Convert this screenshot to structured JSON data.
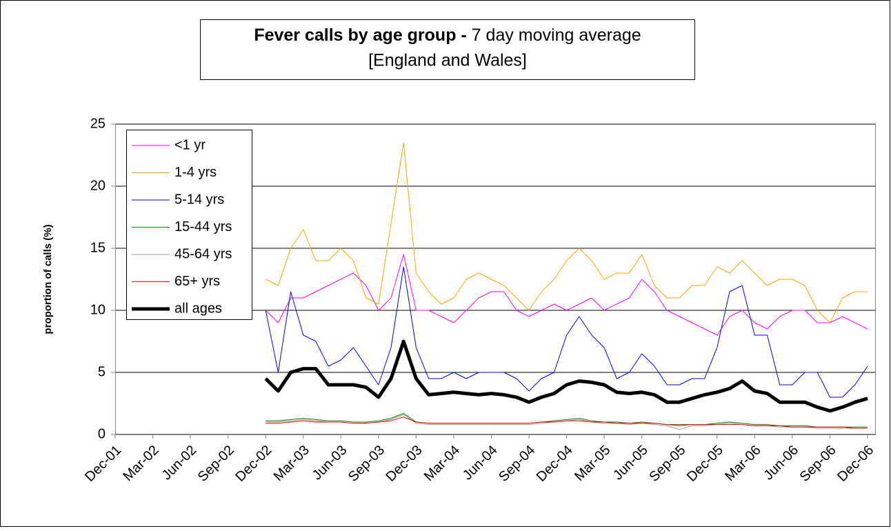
{
  "chart_data": {
    "type": "line",
    "title": "Fever calls by age group -",
    "title_detail": "7 day moving average",
    "subtitle": "[England and Wales]",
    "ylabel": "proportion of calls (%)",
    "categories": [
      "Dec-01",
      null,
      null,
      "Mar-02",
      null,
      null,
      "Jun-02",
      null,
      null,
      "Sep-02",
      null,
      null,
      "Dec-02",
      null,
      null,
      "Mar-03",
      null,
      null,
      "Jun-03",
      null,
      null,
      "Sep-03",
      null,
      null,
      "Dec-03",
      null,
      null,
      "Mar-04",
      null,
      null,
      "Jun-04",
      null,
      null,
      "Sep-04",
      null,
      null,
      "Dec-04",
      null,
      null,
      "Mar-05",
      null,
      null,
      "Jun-05",
      null,
      null,
      "Sep-05",
      null,
      null,
      "Dec-05",
      null,
      null,
      "Mar-06",
      null,
      null,
      "Jun-06",
      null,
      null,
      "Sep-06",
      null,
      null,
      "Dec-06"
    ],
    "ylim": [
      0,
      25
    ],
    "yticks": [
      0,
      5,
      10,
      15,
      20,
      25
    ],
    "grid": true,
    "legend": "upper left",
    "series": [
      {
        "name": "<1 yr",
        "color": "#ff00ff",
        "width": 1,
        "values": [
          null,
          null,
          null,
          null,
          null,
          null,
          null,
          null,
          null,
          null,
          null,
          null,
          10,
          9,
          11,
          11,
          11.5,
          12,
          12.5,
          13,
          12,
          10,
          11,
          14.5,
          10,
          10,
          9.5,
          9,
          10,
          11,
          11.5,
          11.5,
          10,
          9.5,
          10,
          10.5,
          10,
          10.5,
          11,
          10,
          10.5,
          11,
          12.5,
          11.5,
          10,
          9.5,
          9,
          8.5,
          8,
          9.5,
          10,
          9,
          8.5,
          9.5,
          10,
          10,
          9,
          9,
          9.5,
          9,
          8.5
        ]
      },
      {
        "name": "1-4 yrs",
        "color": "#ffa500",
        "width": 1,
        "values": [
          null,
          null,
          null,
          null,
          null,
          null,
          null,
          null,
          null,
          null,
          null,
          null,
          12.5,
          12,
          15,
          16.5,
          14,
          14,
          15,
          14,
          11,
          10.5,
          17,
          23.5,
          13,
          11.5,
          10.5,
          11,
          12.5,
          13,
          12.5,
          12,
          11,
          10,
          11.5,
          12.5,
          14,
          15,
          14,
          12.5,
          13,
          13,
          14.5,
          12,
          11,
          11,
          12,
          12,
          13.5,
          13,
          14,
          13,
          12,
          12.5,
          12.5,
          12,
          10,
          9,
          11,
          11.5,
          11.5
        ]
      },
      {
        "name": "5-14 yrs",
        "color": "#0000ff",
        "width": 1,
        "values": [
          null,
          null,
          null,
          null,
          null,
          null,
          null,
          null,
          null,
          null,
          null,
          null,
          10,
          5,
          11.5,
          8,
          7.5,
          5.5,
          6,
          7,
          5.5,
          4,
          7,
          13.5,
          7,
          4.5,
          4.5,
          5,
          4.5,
          5,
          5,
          5,
          4.5,
          3.5,
          4.5,
          5,
          8,
          9.5,
          8,
          7,
          4.5,
          5,
          6.5,
          5.5,
          4,
          4,
          4.5,
          4.5,
          7,
          11.5,
          12,
          8,
          8,
          4,
          4,
          5,
          5,
          3,
          3,
          4,
          5.5
        ]
      },
      {
        "name": "15-44 yrs",
        "color": "#008000",
        "width": 1,
        "values": [
          null,
          null,
          null,
          null,
          null,
          null,
          null,
          null,
          null,
          null,
          null,
          null,
          1.1,
          1.1,
          1.2,
          1.3,
          1.2,
          1.1,
          1.1,
          1,
          1,
          1.1,
          1.3,
          1.7,
          1,
          0.9,
          0.9,
          0.9,
          0.9,
          0.9,
          0.9,
          0.9,
          0.9,
          0.9,
          1,
          1.1,
          1.2,
          1.3,
          1.1,
          1,
          1,
          0.9,
          1,
          0.9,
          0.8,
          0.7,
          0.8,
          0.8,
          0.9,
          1,
          0.9,
          0.8,
          0.8,
          0.7,
          0.7,
          0.7,
          0.6,
          0.6,
          0.6,
          0.6,
          0.6
        ]
      },
      {
        "name": "45-64 yrs",
        "color": "#999999",
        "width": 1,
        "values": [
          null,
          null,
          null,
          null,
          null,
          null,
          null,
          null,
          null,
          null,
          null,
          null,
          1,
          1,
          1.1,
          1.2,
          1.1,
          1,
          1,
          0.9,
          0.9,
          1,
          1.2,
          1.6,
          0.9,
          0.8,
          0.8,
          0.8,
          0.8,
          0.8,
          0.8,
          0.8,
          0.8,
          0.8,
          0.9,
          1,
          1.1,
          1.2,
          1,
          0.9,
          0.9,
          0.8,
          0.9,
          0.8,
          0.7,
          0.4,
          0.7,
          0.7,
          0.8,
          0.9,
          0.8,
          0.7,
          0.7,
          0.6,
          0.6,
          0.6,
          0.5,
          0.5,
          0.5,
          0.5,
          0.5
        ]
      },
      {
        "name": "65+ yrs",
        "color": "#ff0000",
        "width": 1,
        "values": [
          null,
          null,
          null,
          null,
          null,
          null,
          null,
          null,
          null,
          null,
          null,
          null,
          0.9,
          0.9,
          1,
          1.1,
          1,
          1,
          1,
          0.9,
          0.9,
          1,
          1.1,
          1.4,
          1,
          0.9,
          0.9,
          0.9,
          0.9,
          0.9,
          0.9,
          0.9,
          0.9,
          0.9,
          1,
          1,
          1.1,
          1.1,
          1,
          1,
          0.9,
          0.9,
          0.9,
          0.9,
          0.8,
          0.8,
          0.8,
          0.8,
          0.8,
          0.8,
          0.8,
          0.7,
          0.7,
          0.7,
          0.6,
          0.6,
          0.6,
          0.6,
          0.6,
          0.5,
          0.5
        ]
      },
      {
        "name": "all ages",
        "color": "#000000",
        "width": 5,
        "values": [
          null,
          null,
          null,
          null,
          null,
          null,
          null,
          null,
          null,
          null,
          null,
          null,
          4.5,
          3.5,
          5,
          5.3,
          5.3,
          4,
          4,
          4,
          3.8,
          3,
          4.5,
          7.5,
          4.5,
          3.2,
          3.3,
          3.4,
          3.3,
          3.2,
          3.3,
          3.2,
          3,
          2.6,
          3,
          3.3,
          4,
          4.3,
          4.2,
          4,
          3.4,
          3.3,
          3.4,
          3.2,
          2.6,
          2.6,
          2.9,
          3.2,
          3.4,
          3.7,
          4.3,
          3.5,
          3.3,
          2.6,
          2.6,
          2.6,
          2.2,
          1.9,
          2.2,
          2.6,
          2.9
        ]
      }
    ]
  }
}
